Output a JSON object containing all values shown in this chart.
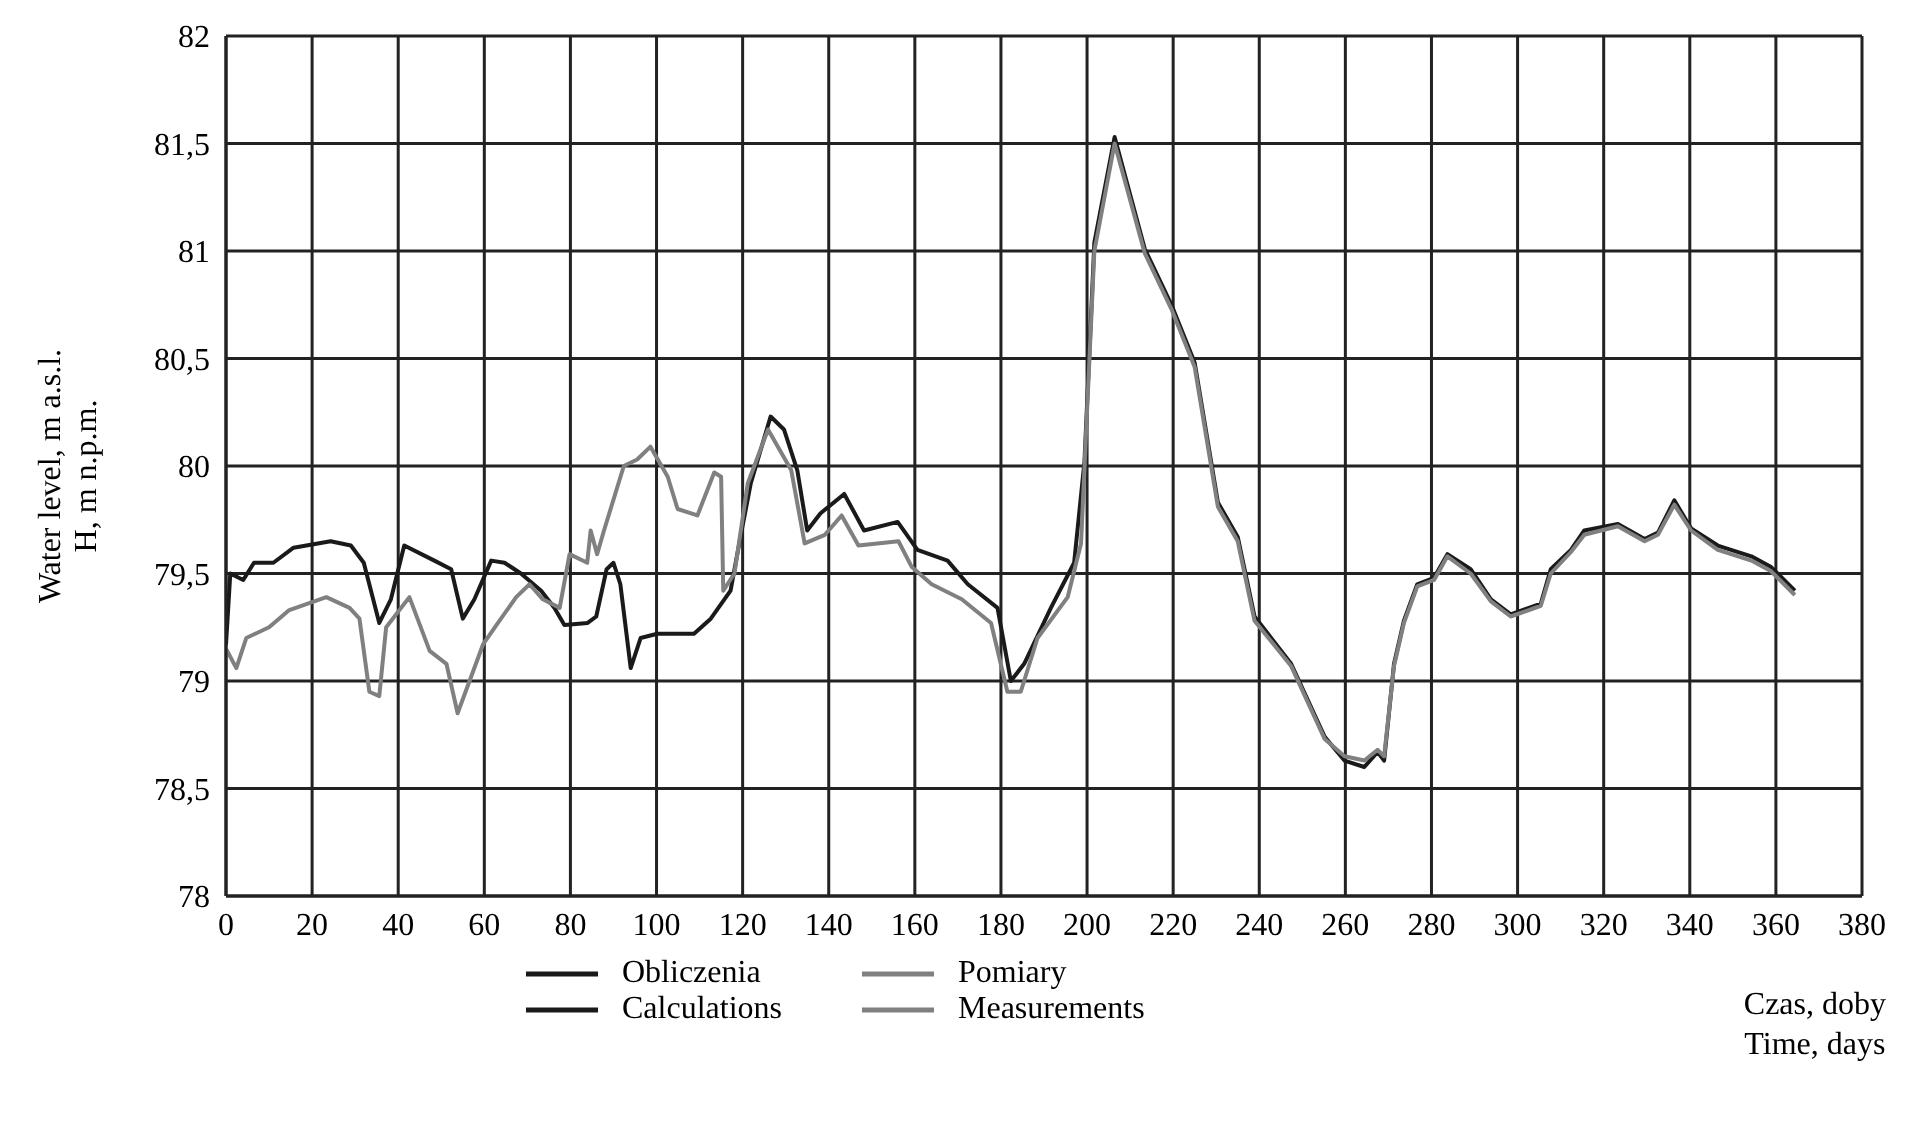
{
  "chart_data": {
    "type": "line",
    "xlabel": "Czas, doby\nTime, days",
    "ylabel": "Water level, m a.s.l.\nH, m n.p.m.",
    "xlim": [
      0,
      380
    ],
    "xticks": [
      0,
      20,
      40,
      60,
      80,
      100,
      120,
      140,
      160,
      180,
      200,
      220,
      240,
      260,
      280,
      300,
      320,
      340,
      360,
      380
    ],
    "ylim": [
      78,
      82
    ],
    "yticks": [
      78,
      {
        "value": 78.5,
        "label": "78,5"
      },
      79,
      {
        "value": 79.5,
        "label": "79,5"
      },
      80,
      {
        "value": 80.5,
        "label": "80,5"
      },
      81,
      {
        "value": 81.5,
        "label": "81,5"
      },
      82
    ],
    "grid": true,
    "legend": "bottom",
    "marker": "none",
    "line_style": "solid",
    "series": [
      {
        "name": "Obliczenia\nCalculations",
        "color": "#1a1a1a",
        "x": [
          0,
          1,
          4,
          6.5,
          11,
          15.7,
          24.3,
          29,
          32,
          35.6,
          38.3,
          41.4,
          48.4,
          52.3,
          55,
          57.7,
          61.6,
          64.7,
          68.5,
          73.2,
          76.3,
          78.6,
          84,
          86,
          88.4,
          90,
          91.6,
          94,
          96.3,
          100.2,
          108.7,
          112.6,
          117.2,
          119.5,
          121.9,
          126.5,
          129.6,
          132.7,
          135,
          138.1,
          143.6,
          148.2,
          156,
          160.6,
          167.6,
          172.3,
          179.2,
          182.3,
          185.4,
          191.6,
          197,
          199.4,
          201.7,
          206.4,
          213.4,
          219.6,
          225,
          230.4,
          235,
          238.9,
          247.4,
          255.2,
          259.8,
          264.4,
          267.5,
          269,
          271.3,
          273.6,
          276.7,
          280.6,
          283.7,
          289.1,
          293.8,
          298.4,
          305.4,
          307.7,
          312.4,
          315.5,
          323.3,
          329.5,
          332.6,
          336.4,
          340.3,
          346.5,
          354.3,
          358.9,
          364.4
        ],
        "values": [
          79.17,
          79.5,
          79.47,
          79.55,
          79.55,
          79.62,
          79.65,
          79.63,
          79.55,
          79.27,
          79.38,
          79.63,
          79.56,
          79.52,
          79.29,
          79.38,
          79.56,
          79.55,
          79.5,
          79.42,
          79.34,
          79.26,
          79.27,
          79.3,
          79.52,
          79.55,
          79.45,
          79.06,
          79.2,
          79.22,
          79.22,
          79.29,
          79.42,
          79.67,
          79.92,
          80.23,
          80.17,
          79.98,
          79.7,
          79.78,
          79.87,
          79.7,
          79.74,
          79.61,
          79.56,
          79.45,
          79.34,
          79.0,
          79.08,
          79.34,
          79.55,
          80.02,
          81.04,
          81.53,
          81.01,
          80.75,
          80.48,
          79.83,
          79.67,
          79.3,
          79.08,
          78.74,
          78.63,
          78.6,
          78.67,
          78.63,
          79.08,
          79.28,
          79.45,
          79.48,
          79.59,
          79.52,
          79.38,
          79.31,
          79.36,
          79.52,
          79.61,
          79.7,
          79.73,
          79.66,
          79.69,
          79.84,
          79.71,
          79.63,
          79.58,
          79.53,
          79.42
        ]
      },
      {
        "name": "Pomiary\nMeasurements",
        "color": "#808080",
        "x": [
          0,
          2.4,
          4.7,
          10,
          14.7,
          23.3,
          28.7,
          31,
          33.3,
          35.6,
          37.2,
          42.6,
          47.3,
          51.2,
          53.8,
          59.7,
          62.8,
          67.4,
          70.5,
          73.6,
          77.5,
          79.8,
          83.9,
          84.7,
          86.2,
          87.8,
          92.4,
          95.5,
          98.6,
          102.6,
          104.9,
          109.5,
          113.4,
          115,
          115.5,
          118.1,
          121.2,
          125.9,
          131.3,
          134.4,
          139.1,
          143,
          146.9,
          156.2,
          159.3,
          163.9,
          170.9,
          177.7,
          181.5,
          184.6,
          188.5,
          195.5,
          198.6,
          201.7,
          206.4,
          213.4,
          219.6,
          225,
          230.4,
          235,
          238.9,
          247.4,
          255.2,
          259.8,
          264.4,
          267.5,
          269,
          271.3,
          273.6,
          276.7,
          280.6,
          283.7,
          289.1,
          293.8,
          298.4,
          305.4,
          307.7,
          312.4,
          315.5,
          323.3,
          329.5,
          332.6,
          336.4,
          340.3,
          346.5,
          354.3,
          358.9,
          364.4
        ],
        "values": [
          79.15,
          79.06,
          79.2,
          79.25,
          79.33,
          79.39,
          79.34,
          79.29,
          78.95,
          78.93,
          79.25,
          79.39,
          79.14,
          79.08,
          78.85,
          79.17,
          79.26,
          79.39,
          79.45,
          79.38,
          79.34,
          79.59,
          79.55,
          79.7,
          79.59,
          79.7,
          80.0,
          80.03,
          80.09,
          79.95,
          79.8,
          79.77,
          79.97,
          79.95,
          79.42,
          79.5,
          79.92,
          80.17,
          79.98,
          79.64,
          79.68,
          79.77,
          79.63,
          79.65,
          79.53,
          79.45,
          79.38,
          79.27,
          78.95,
          78.95,
          79.2,
          79.39,
          79.64,
          81.0,
          81.5,
          80.99,
          80.73,
          80.46,
          79.81,
          79.65,
          79.28,
          79.07,
          78.73,
          78.65,
          78.63,
          78.68,
          78.65,
          79.07,
          79.27,
          79.44,
          79.47,
          79.58,
          79.5,
          79.37,
          79.3,
          79.35,
          79.5,
          79.6,
          79.68,
          79.72,
          79.65,
          79.68,
          79.82,
          79.7,
          79.61,
          79.56,
          79.51,
          79.4
        ]
      }
    ]
  }
}
